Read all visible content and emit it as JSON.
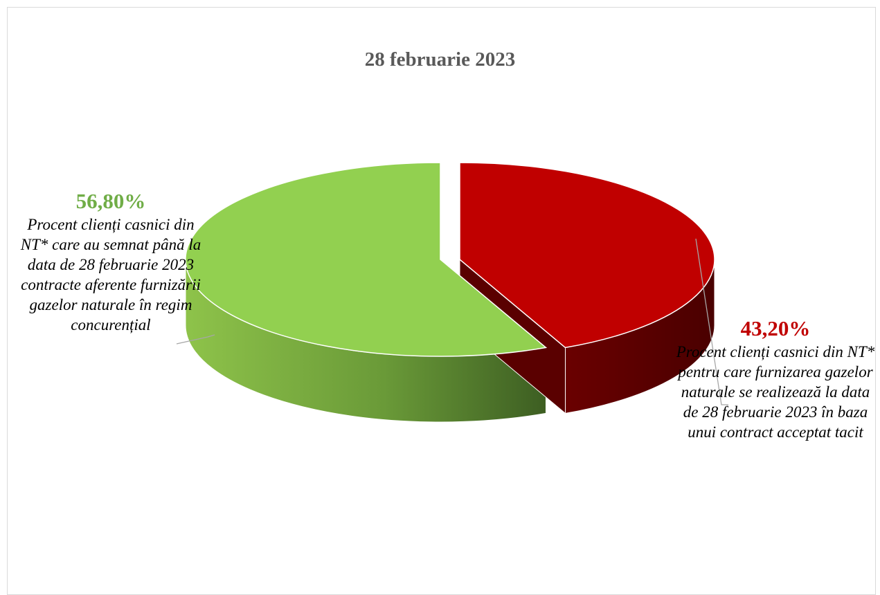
{
  "chart_data": {
    "type": "pie",
    "title": "28 februarie 2023",
    "slices": [
      {
        "value": 56.8,
        "value_label": "56,80%",
        "label": "Procent clienți casnici din NT* care au semnat până la data de 28 februarie 2023 contracte aferente furnizării gazelor naturale în regim concurențial",
        "color": "#92d050"
      },
      {
        "value": 43.2,
        "value_label": "43,20%",
        "label": "Procent clienți casnici din NT* pentru care furnizarea gazelor naturale se realizează la data de 28 februarie 2023 în baza unui contract acceptat tacit",
        "color": "#c00000"
      }
    ],
    "style": "3d-exploded"
  }
}
